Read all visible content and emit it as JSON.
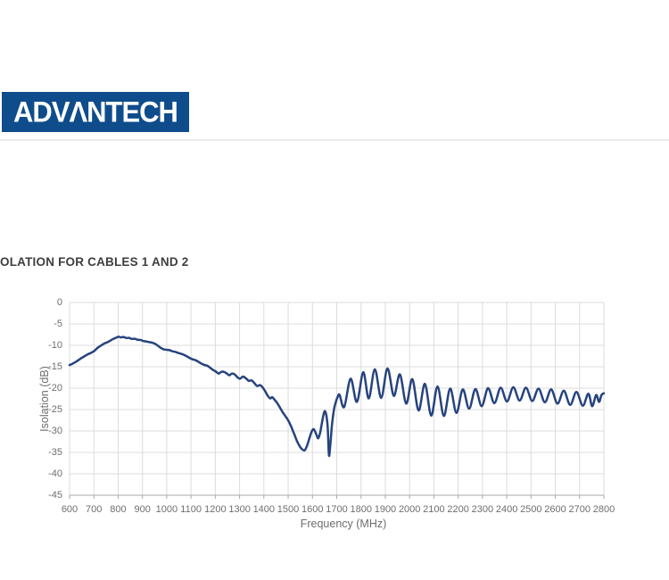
{
  "logo": {
    "text": "ADVΛNTECH",
    "bg_color": "#0F4C8C",
    "text_color": "#FFFFFF"
  },
  "heading": "OLATION FOR CABLES 1 AND 2",
  "chart_data": {
    "type": "line",
    "title": "",
    "xlabel": "Frequency (MHz)",
    "ylabel": "Isolation (dB)",
    "xlim": [
      600,
      2800
    ],
    "ylim": [
      -45,
      0
    ],
    "grid": true,
    "legend": "none",
    "x_ticks": [
      600,
      700,
      800,
      900,
      1000,
      1100,
      1200,
      1300,
      1400,
      1500,
      1600,
      1700,
      1800,
      1900,
      2000,
      2100,
      2200,
      2300,
      2400,
      2500,
      2600,
      2700,
      2800
    ],
    "y_ticks": [
      0,
      -5,
      -10,
      -15,
      -20,
      -25,
      -30,
      -35,
      -40,
      -45
    ],
    "line_color": "#26437E",
    "grid_color": "#DCDCDC",
    "axis_color": "#AAAAAA",
    "label_color": "#6E6E6E",
    "series": [
      {
        "points": [
          [
            600,
            -14.6
          ],
          [
            615,
            -14.2
          ],
          [
            630,
            -13.7
          ],
          [
            645,
            -13.1
          ],
          [
            660,
            -12.6
          ],
          [
            675,
            -12.1
          ],
          [
            690,
            -11.7
          ],
          [
            702,
            -11.3
          ],
          [
            715,
            -10.6
          ],
          [
            728,
            -10.1
          ],
          [
            742,
            -9.6
          ],
          [
            755,
            -9.3
          ],
          [
            768,
            -8.9
          ],
          [
            780,
            -8.5
          ],
          [
            792,
            -8.2
          ],
          [
            802,
            -8.0
          ],
          [
            812,
            -8.15
          ],
          [
            822,
            -8.05
          ],
          [
            834,
            -8.3
          ],
          [
            845,
            -8.25
          ],
          [
            856,
            -8.5
          ],
          [
            868,
            -8.45
          ],
          [
            880,
            -8.7
          ],
          [
            892,
            -8.75
          ],
          [
            904,
            -9.0
          ],
          [
            916,
            -9.1
          ],
          [
            928,
            -9.25
          ],
          [
            940,
            -9.4
          ],
          [
            952,
            -9.65
          ],
          [
            964,
            -10.1
          ],
          [
            976,
            -10.6
          ],
          [
            988,
            -10.95
          ],
          [
            1000,
            -11.05
          ],
          [
            1012,
            -11.15
          ],
          [
            1024,
            -11.4
          ],
          [
            1036,
            -11.55
          ],
          [
            1048,
            -11.8
          ],
          [
            1060,
            -12.0
          ],
          [
            1072,
            -12.25
          ],
          [
            1084,
            -12.6
          ],
          [
            1096,
            -13.0
          ],
          [
            1108,
            -13.3
          ],
          [
            1120,
            -13.5
          ],
          [
            1132,
            -13.9
          ],
          [
            1144,
            -14.3
          ],
          [
            1156,
            -14.6
          ],
          [
            1168,
            -14.8
          ],
          [
            1180,
            -15.3
          ],
          [
            1192,
            -15.8
          ],
          [
            1204,
            -16.2
          ],
          [
            1214,
            -16.6
          ],
          [
            1224,
            -16.2
          ],
          [
            1236,
            -16.2
          ],
          [
            1248,
            -16.6
          ],
          [
            1258,
            -17.0
          ],
          [
            1268,
            -16.6
          ],
          [
            1280,
            -16.8
          ],
          [
            1292,
            -17.5
          ],
          [
            1302,
            -17.8
          ],
          [
            1314,
            -17.3
          ],
          [
            1326,
            -17.7
          ],
          [
            1338,
            -18.3
          ],
          [
            1350,
            -18.2
          ],
          [
            1362,
            -18.9
          ],
          [
            1372,
            -19.5
          ],
          [
            1384,
            -19.3
          ],
          [
            1396,
            -19.9
          ],
          [
            1406,
            -20.8
          ],
          [
            1416,
            -21.8
          ],
          [
            1426,
            -22.4
          ],
          [
            1434,
            -22.1
          ],
          [
            1444,
            -22.7
          ],
          [
            1454,
            -23.4
          ],
          [
            1464,
            -24.3
          ],
          [
            1476,
            -25.5
          ],
          [
            1488,
            -26.5
          ],
          [
            1500,
            -27.5
          ],
          [
            1512,
            -28.9
          ],
          [
            1524,
            -30.6
          ],
          [
            1536,
            -32.3
          ],
          [
            1548,
            -33.6
          ],
          [
            1558,
            -34.3
          ],
          [
            1568,
            -34.5
          ],
          [
            1578,
            -33.4
          ],
          [
            1588,
            -31.6
          ],
          [
            1598,
            -30.0
          ],
          [
            1606,
            -29.6
          ],
          [
            1616,
            -30.8
          ],
          [
            1624,
            -31.7
          ],
          [
            1632,
            -30.3
          ],
          [
            1642,
            -27.2
          ],
          [
            1650,
            -25.4
          ],
          [
            1657,
            -26.3
          ],
          [
            1663,
            -29.2
          ],
          [
            1668,
            -35.7
          ],
          [
            1674,
            -33.0
          ],
          [
            1681,
            -28.3
          ],
          [
            1689,
            -24.9
          ],
          [
            1697,
            -23.1
          ],
          [
            1705,
            -21.9
          ],
          [
            1712,
            -21.6
          ],
          [
            1731,
            -24.4
          ],
          [
            1757,
            -17.8
          ],
          [
            1783,
            -23.2
          ],
          [
            1809,
            -16.3
          ],
          [
            1832,
            -22.4
          ],
          [
            1857,
            -15.6
          ],
          [
            1883,
            -22.3
          ],
          [
            1909,
            -15.4
          ],
          [
            1935,
            -21.8
          ],
          [
            1960,
            -16.8
          ],
          [
            1986,
            -23.6
          ],
          [
            2011,
            -17.9
          ],
          [
            2037,
            -25.2
          ],
          [
            2063,
            -19.0
          ],
          [
            2089,
            -26.4
          ],
          [
            2115,
            -19.6
          ],
          [
            2141,
            -26.5
          ],
          [
            2167,
            -20.1
          ],
          [
            2193,
            -25.8
          ],
          [
            2219,
            -20.3
          ],
          [
            2245,
            -24.8
          ],
          [
            2271,
            -20.2
          ],
          [
            2297,
            -24.2
          ],
          [
            2323,
            -20.0
          ],
          [
            2349,
            -23.5
          ],
          [
            2375,
            -19.9
          ],
          [
            2401,
            -23.1
          ],
          [
            2427,
            -19.8
          ],
          [
            2453,
            -22.9
          ],
          [
            2479,
            -19.9
          ],
          [
            2505,
            -23.0
          ],
          [
            2531,
            -20.1
          ],
          [
            2557,
            -23.3
          ],
          [
            2583,
            -20.3
          ],
          [
            2609,
            -23.6
          ],
          [
            2635,
            -20.6
          ],
          [
            2661,
            -23.9
          ],
          [
            2687,
            -20.9
          ],
          [
            2713,
            -24.1
          ],
          [
            2736,
            -21.3
          ],
          [
            2752,
            -24.2
          ],
          [
            2768,
            -21.6
          ],
          [
            2780,
            -23.2
          ],
          [
            2790,
            -21.6
          ],
          [
            2800,
            -21.2
          ]
        ]
      }
    ]
  }
}
